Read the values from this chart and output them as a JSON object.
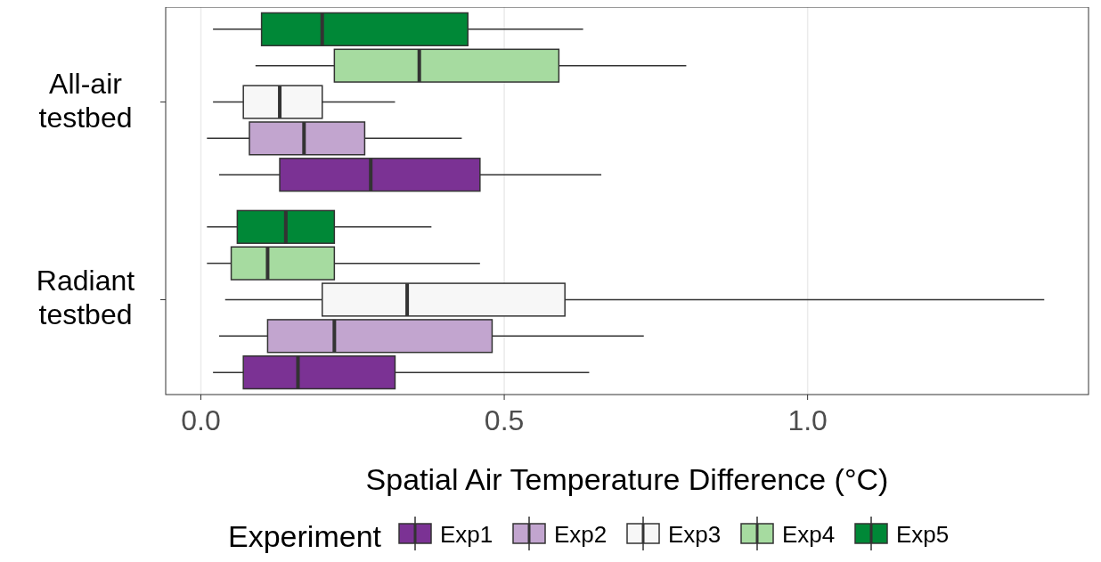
{
  "chart_data": {
    "type": "box",
    "orientation": "horizontal",
    "categories": [
      "All-air testbed",
      "Radiant testbed"
    ],
    "xlabel": "Spatial Air Temperature Difference (°C)",
    "legend_title": "Experiment",
    "legend": "bottom",
    "grid": "x",
    "xlim": [
      -0.058,
      1.463
    ],
    "xticks": [
      {
        "value": 0,
        "label": "0.0"
      },
      0.5,
      {
        "value": 1,
        "label": "1.0"
      }
    ],
    "series": [
      {
        "name": "Exp1",
        "color": "#7b3294",
        "boxes": [
          {
            "low": 0.03,
            "q1": 0.13,
            "median": 0.28,
            "q3": 0.46,
            "high": 0.66
          },
          {
            "low": 0.02,
            "q1": 0.07,
            "median": 0.16,
            "q3": 0.32,
            "high": 0.64
          }
        ]
      },
      {
        "name": "Exp2",
        "color": "#c2a5cf",
        "boxes": [
          {
            "low": 0.01,
            "q1": 0.08,
            "median": 0.17,
            "q3": 0.27,
            "high": 0.43
          },
          {
            "low": 0.03,
            "q1": 0.11,
            "median": 0.22,
            "q3": 0.48,
            "high": 0.73
          }
        ]
      },
      {
        "name": "Exp3",
        "color": "#f7f7f7",
        "boxes": [
          {
            "low": 0.02,
            "q1": 0.07,
            "median": 0.13,
            "q3": 0.2,
            "high": 0.32
          },
          {
            "low": 0.04,
            "q1": 0.2,
            "median": 0.34,
            "q3": 0.6,
            "high": 1.39
          }
        ]
      },
      {
        "name": "Exp4",
        "color": "#a6dba0",
        "boxes": [
          {
            "low": 0.09,
            "q1": 0.22,
            "median": 0.36,
            "q3": 0.59,
            "high": 0.8
          },
          {
            "low": 0.01,
            "q1": 0.05,
            "median": 0.11,
            "q3": 0.22,
            "high": 0.46
          }
        ]
      },
      {
        "name": "Exp5",
        "color": "#008837",
        "boxes": [
          {
            "low": 0.02,
            "q1": 0.1,
            "median": 0.2,
            "q3": 0.44,
            "high": 0.63
          },
          {
            "low": 0.01,
            "q1": 0.06,
            "median": 0.14,
            "q3": 0.22,
            "high": 0.38
          }
        ]
      }
    ]
  }
}
